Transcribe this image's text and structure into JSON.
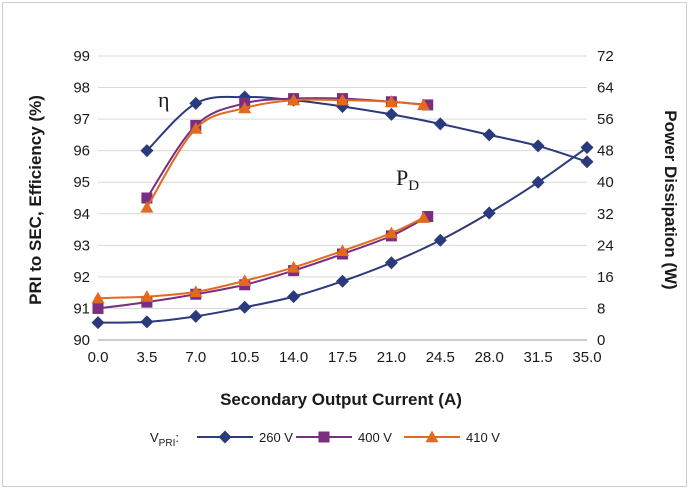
{
  "chart_data": {
    "type": "line",
    "xlabel": "Secondary Output Current (A)",
    "ylabel_left": "PRI to SEC, Efficiency (%)",
    "ylabel_right": "Power Dissipation (W)",
    "x_ticks": [
      "0.0",
      "3.5",
      "7.0",
      "10.5",
      "14.0",
      "17.5",
      "21.0",
      "24.5",
      "28.0",
      "31.5",
      "35.0"
    ],
    "y_left_ticks": [
      "90",
      "91",
      "92",
      "93",
      "94",
      "95",
      "96",
      "97",
      "98",
      "99"
    ],
    "y_right_ticks": [
      "0",
      "8",
      "16",
      "24",
      "32",
      "40",
      "48",
      "56",
      "64",
      "72"
    ],
    "xlim": [
      0,
      35
    ],
    "ylim_left": [
      90,
      99
    ],
    "ylim_right": [
      0,
      72
    ],
    "annotations": {
      "eta": "η",
      "pd_main": "P",
      "pd_sub": "D"
    },
    "legend": {
      "prefix_main": "V",
      "prefix_sub": "PRI",
      "prefix_colon": ":"
    },
    "series": [
      {
        "name": "260 V",
        "color": "#2b3a7a",
        "marker": "diamond",
        "efficiency": {
          "x": [
            3.5,
            7.0,
            10.5,
            14.0,
            17.5,
            21.0,
            24.5,
            28.0,
            31.5,
            35.0
          ],
          "y": [
            96.0,
            97.5,
            97.7,
            97.6,
            97.4,
            97.15,
            96.85,
            96.5,
            96.15,
            95.65
          ]
        },
        "power": {
          "x": [
            0.0,
            3.5,
            7.0,
            10.5,
            14.0,
            17.5,
            21.0,
            24.5,
            28.0,
            31.5,
            35.0
          ],
          "y": [
            4.4,
            4.6,
            6.0,
            8.3,
            11.0,
            14.9,
            19.6,
            25.3,
            32.2,
            40.0,
            48.8
          ]
        }
      },
      {
        "name": "400 V",
        "color": "#7a2e80",
        "marker": "square",
        "efficiency": {
          "x": [
            3.5,
            7.0,
            10.5,
            14.0,
            17.5,
            21.0,
            23.6
          ],
          "y": [
            94.5,
            96.8,
            97.5,
            97.65,
            97.65,
            97.55,
            97.45
          ]
        },
        "power": {
          "x": [
            0.0,
            3.5,
            7.0,
            10.5,
            14.0,
            17.5,
            21.0,
            23.6
          ],
          "y": [
            8.0,
            9.6,
            11.6,
            14.0,
            17.6,
            21.8,
            26.4,
            31.3
          ]
        }
      },
      {
        "name": "410 V",
        "color": "#e26a1f",
        "marker": "triangle",
        "efficiency": {
          "x": [
            3.5,
            7.0,
            10.5,
            14.0,
            17.5,
            21.0,
            23.3
          ],
          "y": [
            94.2,
            96.7,
            97.35,
            97.6,
            97.6,
            97.55,
            97.45
          ]
        },
        "power": {
          "x": [
            0.0,
            3.5,
            7.0,
            10.5,
            14.0,
            17.5,
            21.0,
            23.3
          ],
          "y": [
            10.6,
            11.0,
            12.2,
            15.0,
            18.4,
            22.6,
            27.1,
            31.0
          ]
        }
      }
    ]
  }
}
